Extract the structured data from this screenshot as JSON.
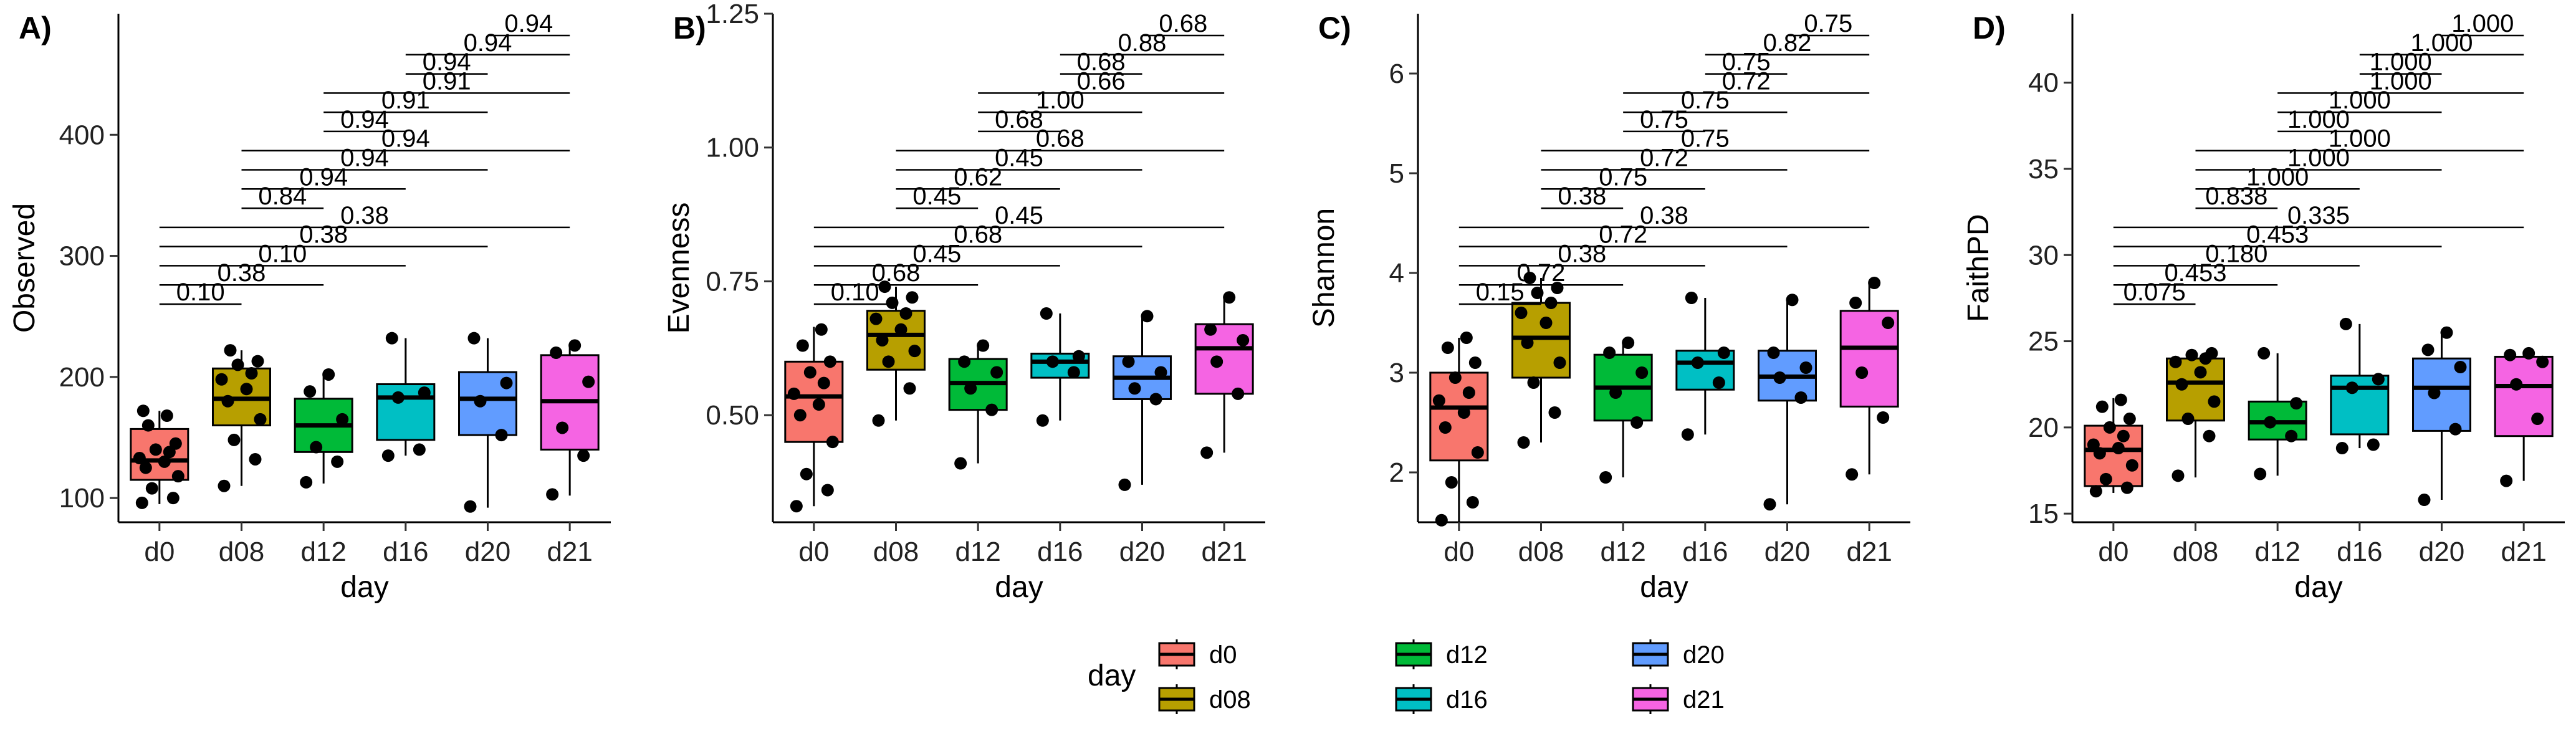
{
  "legend": {
    "title": "day",
    "entries": [
      {
        "label": "d0",
        "color": "#F8766D"
      },
      {
        "label": "d08",
        "color": "#B79F00"
      },
      {
        "label": "d12",
        "color": "#00BA38"
      },
      {
        "label": "d16",
        "color": "#00BFC4"
      },
      {
        "label": "d20",
        "color": "#619CFF"
      },
      {
        "label": "d21",
        "color": "#F564E3"
      }
    ]
  },
  "chart_data": [
    {
      "type": "box",
      "panel_label": "A)",
      "xlabel": "day",
      "ylabel": "Observed",
      "categories": [
        "d0",
        "d08",
        "d12",
        "d16",
        "d20",
        "d21"
      ],
      "ylim": [
        80,
        500
      ],
      "yticks": [
        100,
        200,
        300,
        400
      ],
      "yticklabels": [
        "100",
        "200",
        "300",
        "400"
      ],
      "boxes": [
        {
          "min": 95,
          "q1": 115,
          "median": 131,
          "q3": 157,
          "max": 172
        },
        {
          "min": 110,
          "q1": 160,
          "median": 182,
          "q3": 207,
          "max": 222
        },
        {
          "min": 112,
          "q1": 138,
          "median": 160,
          "q3": 182,
          "max": 203
        },
        {
          "min": 135,
          "q1": 148,
          "median": 183,
          "q3": 194,
          "max": 232
        },
        {
          "min": 92,
          "q1": 152,
          "median": 182,
          "q3": 204,
          "max": 232
        },
        {
          "min": 102,
          "q1": 140,
          "median": 180,
          "q3": 218,
          "max": 226
        }
      ],
      "points": [
        [
          96,
          100,
          108,
          118,
          125,
          130,
          133,
          138,
          140,
          145,
          160,
          168,
          172
        ],
        [
          110,
          132,
          148,
          165,
          180,
          190,
          198,
          203,
          210,
          213,
          222
        ],
        [
          113,
          130,
          142,
          165,
          188,
          202
        ],
        [
          135,
          140,
          183,
          187,
          232
        ],
        [
          93,
          152,
          180,
          195,
          232
        ],
        [
          103,
          135,
          158,
          196,
          220,
          226
        ]
      ],
      "comparisons": [
        {
          "from": "d0",
          "to": "d08",
          "label": "0.10"
        },
        {
          "from": "d0",
          "to": "d12",
          "label": "0.38"
        },
        {
          "from": "d0",
          "to": "d16",
          "label": "0.10"
        },
        {
          "from": "d0",
          "to": "d20",
          "label": "0.38"
        },
        {
          "from": "d0",
          "to": "d21",
          "label": "0.38"
        },
        {
          "from": "d08",
          "to": "d12",
          "label": "0.84"
        },
        {
          "from": "d08",
          "to": "d16",
          "label": "0.94"
        },
        {
          "from": "d08",
          "to": "d20",
          "label": "0.94"
        },
        {
          "from": "d08",
          "to": "d21",
          "label": "0.94"
        },
        {
          "from": "d12",
          "to": "d16",
          "label": "0.94"
        },
        {
          "from": "d12",
          "to": "d20",
          "label": "0.91"
        },
        {
          "from": "d12",
          "to": "d21",
          "label": "0.91"
        },
        {
          "from": "d16",
          "to": "d20",
          "label": "0.94"
        },
        {
          "from": "d16",
          "to": "d21",
          "label": "0.94"
        },
        {
          "from": "d20",
          "to": "d21",
          "label": "0.94"
        }
      ]
    },
    {
      "type": "box",
      "panel_label": "B)",
      "xlabel": "day",
      "ylabel": "Evenness",
      "categories": [
        "d0",
        "d08",
        "d12",
        "d16",
        "d20",
        "d21"
      ],
      "ylim": [
        0.3,
        1.25
      ],
      "yticks": [
        0.5,
        0.75,
        1.0,
        1.25
      ],
      "yticklabels": [
        "0.50",
        "0.75",
        "1.00",
        "1.25"
      ],
      "boxes": [
        {
          "min": 0.33,
          "q1": 0.45,
          "median": 0.535,
          "q3": 0.6,
          "max": 0.665
        },
        {
          "min": 0.49,
          "q1": 0.585,
          "median": 0.65,
          "q3": 0.695,
          "max": 0.74
        },
        {
          "min": 0.41,
          "q1": 0.51,
          "median": 0.56,
          "q3": 0.605,
          "max": 0.63
        },
        {
          "min": 0.49,
          "q1": 0.57,
          "median": 0.6,
          "q3": 0.615,
          "max": 0.69
        },
        {
          "min": 0.37,
          "q1": 0.53,
          "median": 0.57,
          "q3": 0.61,
          "max": 0.685
        },
        {
          "min": 0.43,
          "q1": 0.54,
          "median": 0.625,
          "q3": 0.67,
          "max": 0.72
        }
      ],
      "points": [
        [
          0.33,
          0.36,
          0.39,
          0.45,
          0.5,
          0.52,
          0.54,
          0.56,
          0.58,
          0.6,
          0.63,
          0.66
        ],
        [
          0.49,
          0.55,
          0.6,
          0.62,
          0.64,
          0.66,
          0.68,
          0.69,
          0.71,
          0.72,
          0.74
        ],
        [
          0.41,
          0.51,
          0.55,
          0.58,
          0.6,
          0.63
        ],
        [
          0.49,
          0.58,
          0.6,
          0.61,
          0.69
        ],
        [
          0.37,
          0.53,
          0.55,
          0.58,
          0.6,
          0.685
        ],
        [
          0.43,
          0.54,
          0.6,
          0.64,
          0.66,
          0.72
        ]
      ],
      "comparisons": [
        {
          "from": "d0",
          "to": "d08",
          "label": "0.10"
        },
        {
          "from": "d0",
          "to": "d12",
          "label": "0.68"
        },
        {
          "from": "d0",
          "to": "d16",
          "label": "0.45"
        },
        {
          "from": "d0",
          "to": "d20",
          "label": "0.68"
        },
        {
          "from": "d0",
          "to": "d21",
          "label": "0.45"
        },
        {
          "from": "d08",
          "to": "d12",
          "label": "0.45"
        },
        {
          "from": "d08",
          "to": "d16",
          "label": "0.62"
        },
        {
          "from": "d08",
          "to": "d20",
          "label": "0.45"
        },
        {
          "from": "d08",
          "to": "d21",
          "label": "0.68"
        },
        {
          "from": "d12",
          "to": "d16",
          "label": "0.68"
        },
        {
          "from": "d12",
          "to": "d20",
          "label": "1.00"
        },
        {
          "from": "d12",
          "to": "d21",
          "label": "0.66"
        },
        {
          "from": "d16",
          "to": "d20",
          "label": "0.68"
        },
        {
          "from": "d16",
          "to": "d21",
          "label": "0.88"
        },
        {
          "from": "d20",
          "to": "d21",
          "label": "0.68"
        }
      ]
    },
    {
      "type": "box",
      "panel_label": "C)",
      "xlabel": "day",
      "ylabel": "Shannon",
      "categories": [
        "d0",
        "d08",
        "d12",
        "d16",
        "d20",
        "d21"
      ],
      "ylim": [
        1.5,
        6.6
      ],
      "yticks": [
        2,
        3,
        4,
        5,
        6
      ],
      "yticklabels": [
        "2",
        "3",
        "4",
        "5",
        "6"
      ],
      "boxes": [
        {
          "min": 1.5,
          "q1": 2.12,
          "median": 2.65,
          "q3": 3.0,
          "max": 3.35
        },
        {
          "min": 2.3,
          "q1": 2.95,
          "median": 3.35,
          "q3": 3.7,
          "max": 3.95
        },
        {
          "min": 1.95,
          "q1": 2.52,
          "median": 2.85,
          "q3": 3.18,
          "max": 3.3
        },
        {
          "min": 2.38,
          "q1": 2.83,
          "median": 3.1,
          "q3": 3.22,
          "max": 3.75
        },
        {
          "min": 1.68,
          "q1": 2.72,
          "median": 2.96,
          "q3": 3.22,
          "max": 3.73
        },
        {
          "min": 1.98,
          "q1": 2.66,
          "median": 3.25,
          "q3": 3.62,
          "max": 3.9
        }
      ],
      "points": [
        [
          1.52,
          1.7,
          1.9,
          2.2,
          2.45,
          2.6,
          2.72,
          2.8,
          2.95,
          3.1,
          3.25,
          3.35
        ],
        [
          2.3,
          2.6,
          2.9,
          3.1,
          3.3,
          3.5,
          3.6,
          3.7,
          3.8,
          3.85,
          3.95
        ],
        [
          1.95,
          2.5,
          2.8,
          3.0,
          3.2,
          3.3
        ],
        [
          2.38,
          2.9,
          3.1,
          3.2,
          3.75
        ],
        [
          1.68,
          2.75,
          2.95,
          3.05,
          3.2,
          3.73
        ],
        [
          1.98,
          2.55,
          3.0,
          3.5,
          3.7,
          3.9
        ]
      ],
      "comparisons": [
        {
          "from": "d0",
          "to": "d08",
          "label": "0.15"
        },
        {
          "from": "d0",
          "to": "d12",
          "label": "0.72"
        },
        {
          "from": "d0",
          "to": "d16",
          "label": "0.38"
        },
        {
          "from": "d0",
          "to": "d20",
          "label": "0.72"
        },
        {
          "from": "d0",
          "to": "d21",
          "label": "0.38"
        },
        {
          "from": "d08",
          "to": "d12",
          "label": "0.38"
        },
        {
          "from": "d08",
          "to": "d16",
          "label": "0.75"
        },
        {
          "from": "d08",
          "to": "d20",
          "label": "0.72"
        },
        {
          "from": "d08",
          "to": "d21",
          "label": "0.75"
        },
        {
          "from": "d12",
          "to": "d16",
          "label": "0.75"
        },
        {
          "from": "d12",
          "to": "d20",
          "label": "0.75"
        },
        {
          "from": "d12",
          "to": "d21",
          "label": "0.72"
        },
        {
          "from": "d16",
          "to": "d20",
          "label": "0.75"
        },
        {
          "from": "d16",
          "to": "d21",
          "label": "0.82"
        },
        {
          "from": "d20",
          "to": "d21",
          "label": "0.75"
        }
      ]
    },
    {
      "type": "box",
      "panel_label": "D)",
      "xlabel": "day",
      "ylabel": "FaithPD",
      "categories": [
        "d0",
        "d08",
        "d12",
        "d16",
        "d20",
        "d21"
      ],
      "ylim": [
        14.5,
        44
      ],
      "yticks": [
        15,
        20,
        25,
        30,
        35,
        40
      ],
      "yticklabels": [
        "15",
        "20",
        "25",
        "30",
        "35",
        "40"
      ],
      "boxes": [
        {
          "min": 16.2,
          "q1": 16.6,
          "median": 18.7,
          "q3": 20.1,
          "max": 21.7
        },
        {
          "min": 17.1,
          "q1": 20.4,
          "median": 22.6,
          "q3": 24.0,
          "max": 24.4
        },
        {
          "min": 17.2,
          "q1": 19.3,
          "median": 20.3,
          "q3": 21.5,
          "max": 24.3
        },
        {
          "min": 18.8,
          "q1": 19.6,
          "median": 22.3,
          "q3": 23.0,
          "max": 26.0
        },
        {
          "min": 15.8,
          "q1": 19.8,
          "median": 22.3,
          "q3": 24.0,
          "max": 25.5
        },
        {
          "min": 16.9,
          "q1": 19.5,
          "median": 22.4,
          "q3": 24.1,
          "max": 24.3
        }
      ],
      "points": [
        [
          16.3,
          16.5,
          17.0,
          17.8,
          18.5,
          18.8,
          19.0,
          19.5,
          20.0,
          20.5,
          21.2,
          21.6
        ],
        [
          17.2,
          19.5,
          20.5,
          21.5,
          22.5,
          23.2,
          23.8,
          24.0,
          24.2,
          24.3
        ],
        [
          17.3,
          19.5,
          20.3,
          21.4,
          24.3
        ],
        [
          18.8,
          19.0,
          22.3,
          22.8,
          26.0
        ],
        [
          15.8,
          19.9,
          22.0,
          23.5,
          24.5,
          25.5
        ],
        [
          16.9,
          20.5,
          22.5,
          23.8,
          24.2,
          24.3
        ]
      ],
      "comparisons": [
        {
          "from": "d0",
          "to": "d08",
          "label": "0.075"
        },
        {
          "from": "d0",
          "to": "d12",
          "label": "0.453"
        },
        {
          "from": "d0",
          "to": "d16",
          "label": "0.180"
        },
        {
          "from": "d0",
          "to": "d20",
          "label": "0.453"
        },
        {
          "from": "d0",
          "to": "d21",
          "label": "0.335"
        },
        {
          "from": "d08",
          "to": "d12",
          "label": "0.838"
        },
        {
          "from": "d08",
          "to": "d16",
          "label": "1.000"
        },
        {
          "from": "d08",
          "to": "d20",
          "label": "1.000"
        },
        {
          "from": "d08",
          "to": "d21",
          "label": "1.000"
        },
        {
          "from": "d12",
          "to": "d16",
          "label": "1.000"
        },
        {
          "from": "d12",
          "to": "d20",
          "label": "1.000"
        },
        {
          "from": "d12",
          "to": "d21",
          "label": "1.000"
        },
        {
          "from": "d16",
          "to": "d20",
          "label": "1.000"
        },
        {
          "from": "d16",
          "to": "d21",
          "label": "1.000"
        },
        {
          "from": "d20",
          "to": "d21",
          "label": "1.000"
        }
      ]
    }
  ]
}
